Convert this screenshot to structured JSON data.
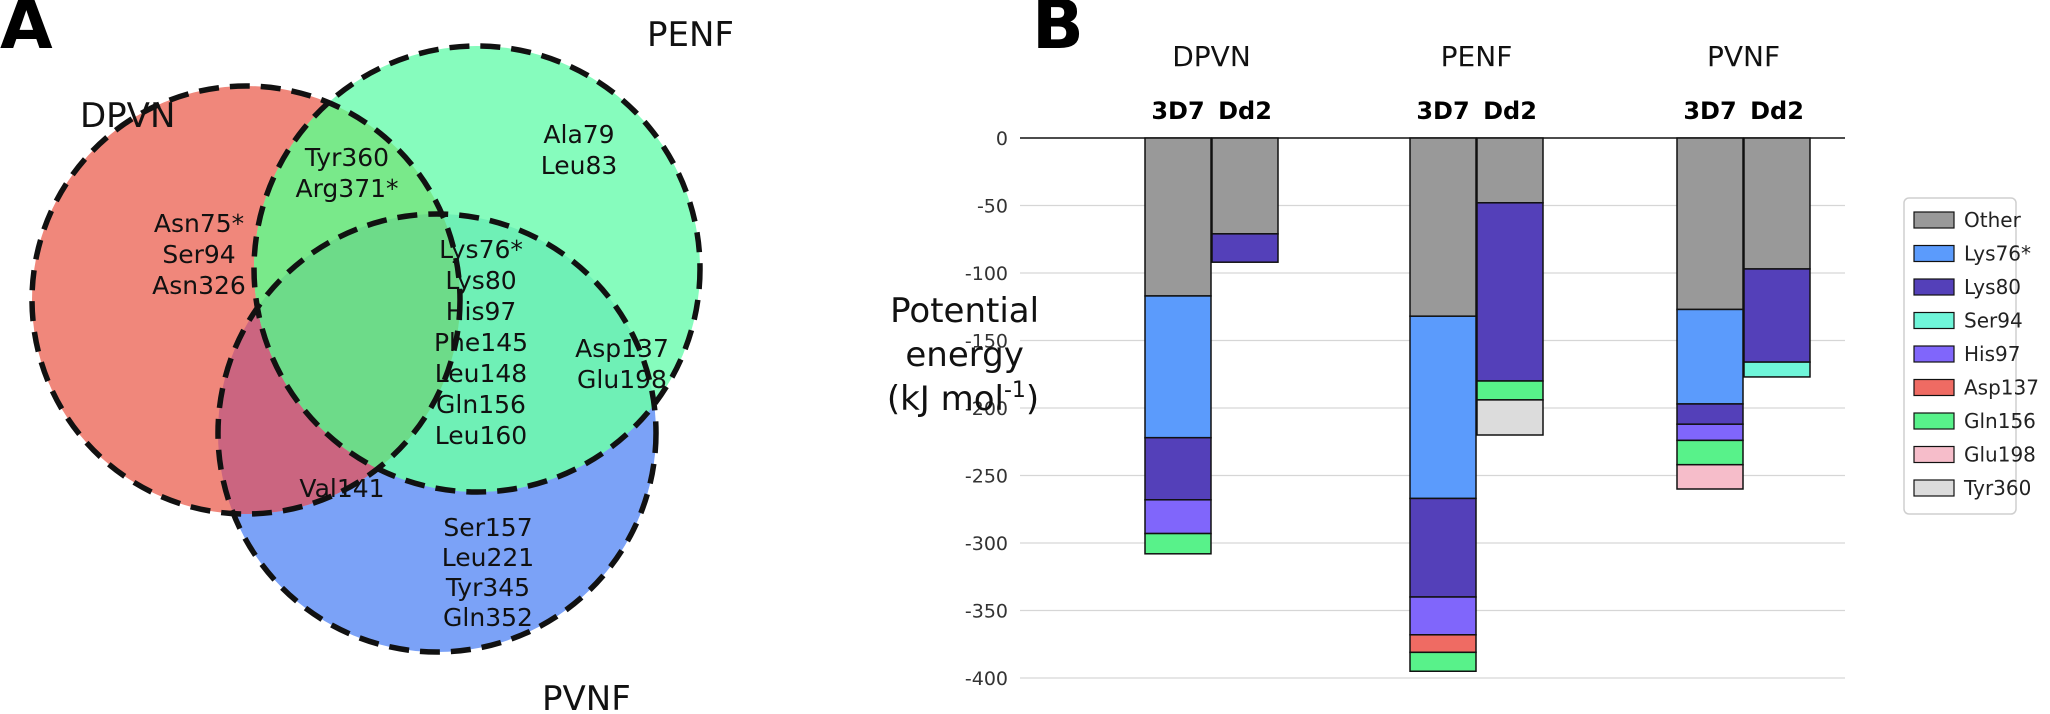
{
  "panels": {
    "a": "A",
    "b": "B"
  },
  "venn": {
    "sets": [
      {
        "id": "DPVN",
        "label": "DPVN",
        "color": "#f0877b"
      },
      {
        "id": "PENF",
        "label": "PENF",
        "color": "#86fcbd"
      },
      {
        "id": "PVNF",
        "label": "PVNF",
        "color": "#7ba2f7"
      }
    ],
    "regions": {
      "dpvn_only": [
        "Asn75*",
        "Ser94",
        "Asn326"
      ],
      "penf_only": [
        "Ala79",
        "Leu83"
      ],
      "pvnf_only": [
        "Ser157",
        "Leu221",
        "Tyr345",
        "Gln352"
      ],
      "dpvn_penf": [
        "Tyr360",
        "Arg371*"
      ],
      "penf_pvnf": [
        "Asp137",
        "Glu198"
      ],
      "dpvn_pvnf": [
        "Val141"
      ],
      "all_three": [
        "Lys76*",
        "Lys80",
        "His97",
        "Phe145",
        "Leu148",
        "Gln156",
        "Leu160"
      ]
    },
    "region_colors": {
      "dpvn_penf": "#79e98a",
      "penf_pvnf": "#6ff0b6",
      "dpvn_pvnf": "#cb6580",
      "all_three": "#6ddb89"
    }
  },
  "chart_data": {
    "type": "bar",
    "stacked": true,
    "title": "",
    "xlabel": "",
    "ylabel": "Potential energy (kJ mol-1)",
    "ylabel_lines": [
      "Potential",
      "energy",
      "(kJ mol",
      "-1",
      ")"
    ],
    "ylim": [
      -400,
      0
    ],
    "yticks": [
      0,
      -50,
      -100,
      -150,
      -200,
      -250,
      -300,
      -350,
      -400
    ],
    "grid": true,
    "groups": [
      "DPVN",
      "PENF",
      "PVNF"
    ],
    "strains": [
      "3D7",
      "Dd2"
    ],
    "legend": {
      "placement": "right",
      "entries": [
        {
          "name": "Other",
          "color": "#999999"
        },
        {
          "name": "Lys76*",
          "color": "#5b9bfc"
        },
        {
          "name": "Lys80",
          "color": "#5440b9"
        },
        {
          "name": "Ser94",
          "color": "#6ff5d9"
        },
        {
          "name": "His97",
          "color": "#8066fb"
        },
        {
          "name": "Asp137",
          "color": "#ef6b63"
        },
        {
          "name": "Gln156",
          "color": "#58f28a"
        },
        {
          "name": "Glu198",
          "color": "#f6bdca"
        },
        {
          "name": "Tyr360",
          "color": "#dcdcdc"
        }
      ]
    },
    "series": [
      {
        "group": "DPVN",
        "strain": "3D7",
        "segments": [
          {
            "name": "Other",
            "value": -117
          },
          {
            "name": "Lys76*",
            "value": -105
          },
          {
            "name": "Lys80",
            "value": -46
          },
          {
            "name": "His97",
            "value": -25
          },
          {
            "name": "Gln156",
            "value": -15
          }
        ]
      },
      {
        "group": "DPVN",
        "strain": "Dd2",
        "segments": [
          {
            "name": "Other",
            "value": -71
          },
          {
            "name": "Lys80",
            "value": -21
          }
        ]
      },
      {
        "group": "PENF",
        "strain": "3D7",
        "segments": [
          {
            "name": "Other",
            "value": -132
          },
          {
            "name": "Lys76*",
            "value": -135
          },
          {
            "name": "Lys80",
            "value": -73
          },
          {
            "name": "His97",
            "value": -28
          },
          {
            "name": "Asp137",
            "value": -13
          },
          {
            "name": "Gln156",
            "value": -14
          }
        ]
      },
      {
        "group": "PENF",
        "strain": "Dd2",
        "segments": [
          {
            "name": "Other",
            "value": -48
          },
          {
            "name": "Lys80",
            "value": -132
          },
          {
            "name": "Gln156",
            "value": -14
          },
          {
            "name": "Tyr360",
            "value": -26
          }
        ]
      },
      {
        "group": "PVNF",
        "strain": "3D7",
        "segments": [
          {
            "name": "Other",
            "value": -127
          },
          {
            "name": "Lys76*",
            "value": -70
          },
          {
            "name": "Lys80",
            "value": -15
          },
          {
            "name": "His97",
            "value": -12
          },
          {
            "name": "Gln156",
            "value": -18
          },
          {
            "name": "Glu198",
            "value": -18
          }
        ]
      },
      {
        "group": "PVNF",
        "strain": "Dd2",
        "segments": [
          {
            "name": "Other",
            "value": -97
          },
          {
            "name": "Lys80",
            "value": -69
          },
          {
            "name": "Ser94",
            "value": -11
          }
        ]
      }
    ]
  }
}
